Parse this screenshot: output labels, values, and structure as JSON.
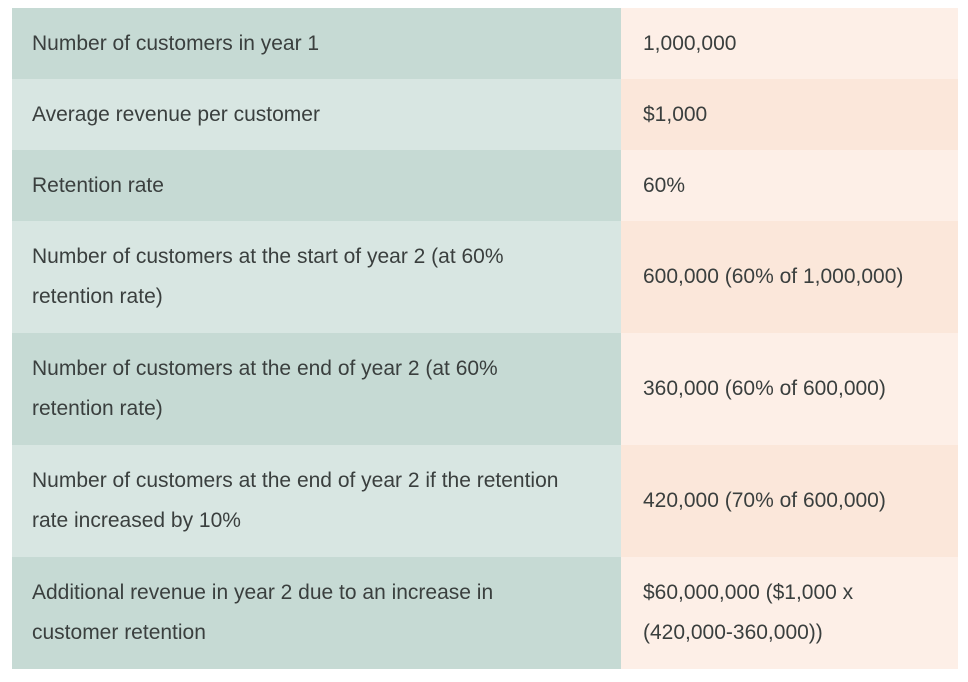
{
  "table": {
    "rows": [
      {
        "label": "Number of customers in year 1",
        "value": "1,000,000"
      },
      {
        "label": "Average revenue per customer",
        "value": "$1,000"
      },
      {
        "label": "Retention rate",
        "value": "60%"
      },
      {
        "label": "Number of customers at the start of year 2 (at 60% retention rate)",
        "value": "600,000 (60% of 1,000,000)"
      },
      {
        "label": "Number of customers at the end of year 2 (at 60% retention rate)",
        "value": "360,000 (60% of 600,000)"
      },
      {
        "label": "Number of customers at the end of year 2 if the retention rate increased by 10%",
        "value": "420,000 (70% of 600,000)"
      },
      {
        "label": "Additional revenue in year 2 due to an increase in customer retention",
        "value": "$60,000,000 ($1,000 x (420,000-360,000))"
      }
    ],
    "colors": {
      "label_dark": "#c6dad4",
      "label_light": "#d8e6e2",
      "value_dark": "#fdefe7",
      "value_light": "#fbe7da",
      "text": "#3a3f3e"
    }
  }
}
